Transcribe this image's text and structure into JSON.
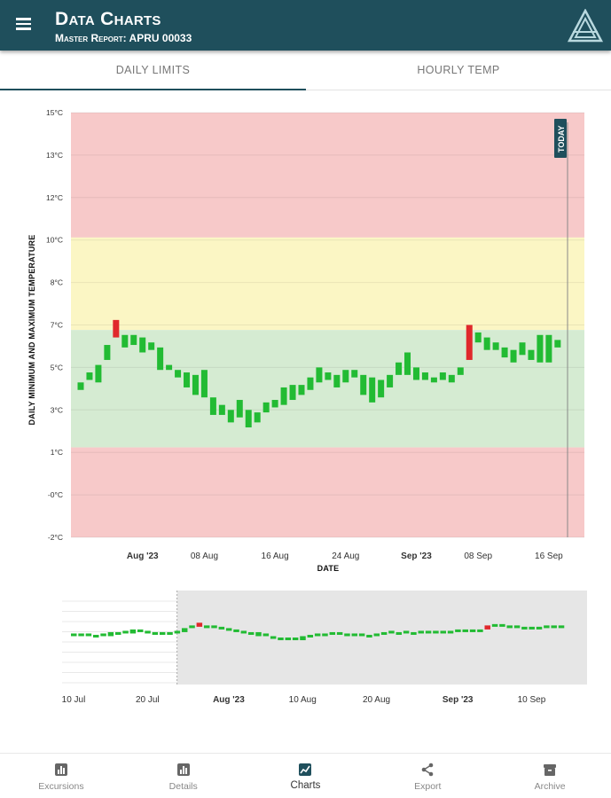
{
  "header": {
    "title": "Data Charts",
    "subtitle": "Master Report: APRU 00033",
    "background": "#1f4f5c",
    "menu_icon": "hamburger-menu-icon",
    "logo_icon": "triangle-logo-icon"
  },
  "tabs": [
    {
      "label": "DAILY LIMITS",
      "active": true
    },
    {
      "label": "HOURLY TEMP",
      "active": false
    }
  ],
  "bottom_nav": [
    {
      "label": "Excursions",
      "icon": "bar-chart-icon",
      "active": false
    },
    {
      "label": "Details",
      "icon": "bar-chart-icon",
      "active": false
    },
    {
      "label": "Charts",
      "icon": "line-chart-icon",
      "active": true
    },
    {
      "label": "Export",
      "icon": "share-icon",
      "active": false
    },
    {
      "label": "Archive",
      "icon": "archive-icon",
      "active": false
    }
  ],
  "chart_data": [
    {
      "type": "candlestick",
      "xlabel": "DATE",
      "ylabel": "DAILY MINIMUM AND MAXIMUM TEMPERATURE",
      "today_label": "TODAY",
      "y_ticks": [
        "15°C",
        "13°C",
        "12°C",
        "10°C",
        "8°C",
        "7°C",
        "5°C",
        "3°C",
        "1°C",
        "-0°C",
        "-2°C"
      ],
      "ylim": [
        -2,
        15
      ],
      "x_ticks": [
        {
          "label": "Aug '23",
          "day": 31,
          "bold": true
        },
        {
          "label": "08 Aug",
          "day": 38,
          "bold": false
        },
        {
          "label": "16 Aug",
          "day": 46,
          "bold": false
        },
        {
          "label": "24 Aug",
          "day": 54,
          "bold": false
        },
        {
          "label": "Sep '23",
          "day": 62,
          "bold": true
        },
        {
          "label": "08 Sep",
          "day": 69,
          "bold": false
        },
        {
          "label": "16 Sep",
          "day": 77,
          "bold": false
        }
      ],
      "zones": [
        {
          "from": 10,
          "to": 15,
          "color": "#f7c9c9"
        },
        {
          "from": 6.3,
          "to": 10,
          "color": "#fbf6c4"
        },
        {
          "from": 1.6,
          "to": 6.3,
          "color": "#d5ebd2"
        },
        {
          "from": -2,
          "to": 1.6,
          "color": "#f7c9c9"
        }
      ],
      "colors": {
        "ok": "#22bb33",
        "excursion": "#e0282c"
      },
      "series": [
        {
          "day": 24,
          "min": 3.9,
          "max": 4.2,
          "excursion": false
        },
        {
          "day": 25,
          "min": 4.3,
          "max": 4.6,
          "excursion": false
        },
        {
          "day": 26,
          "min": 4.2,
          "max": 4.9,
          "excursion": false
        },
        {
          "day": 27,
          "min": 5.1,
          "max": 5.7,
          "excursion": false
        },
        {
          "day": 28,
          "min": 6.0,
          "max": 6.7,
          "excursion": true
        },
        {
          "day": 29,
          "min": 5.6,
          "max": 6.1,
          "excursion": false
        },
        {
          "day": 30,
          "min": 5.7,
          "max": 6.1,
          "excursion": false
        },
        {
          "day": 31,
          "min": 5.4,
          "max": 6.0,
          "excursion": false
        },
        {
          "day": 32,
          "min": 5.5,
          "max": 5.8,
          "excursion": false
        },
        {
          "day": 33,
          "min": 4.7,
          "max": 5.6,
          "excursion": false
        },
        {
          "day": 34,
          "min": 4.7,
          "max": 4.9,
          "excursion": false
        },
        {
          "day": 35,
          "min": 4.4,
          "max": 4.7,
          "excursion": false
        },
        {
          "day": 36,
          "min": 4.0,
          "max": 4.6,
          "excursion": false
        },
        {
          "day": 37,
          "min": 3.7,
          "max": 4.5,
          "excursion": false
        },
        {
          "day": 38,
          "min": 3.6,
          "max": 4.7,
          "excursion": false
        },
        {
          "day": 39,
          "min": 2.9,
          "max": 3.6,
          "excursion": false
        },
        {
          "day": 40,
          "min": 2.9,
          "max": 3.3,
          "excursion": false
        },
        {
          "day": 41,
          "min": 2.6,
          "max": 3.1,
          "excursion": false
        },
        {
          "day": 42,
          "min": 2.8,
          "max": 3.5,
          "excursion": false
        },
        {
          "day": 43,
          "min": 2.4,
          "max": 3.1,
          "excursion": false
        },
        {
          "day": 44,
          "min": 2.6,
          "max": 3.0,
          "excursion": false
        },
        {
          "day": 45,
          "min": 3.0,
          "max": 3.4,
          "excursion": false
        },
        {
          "day": 46,
          "min": 3.2,
          "max": 3.5,
          "excursion": false
        },
        {
          "day": 47,
          "min": 3.3,
          "max": 4.0,
          "excursion": false
        },
        {
          "day": 48,
          "min": 3.5,
          "max": 4.1,
          "excursion": false
        },
        {
          "day": 49,
          "min": 3.7,
          "max": 4.1,
          "excursion": false
        },
        {
          "day": 50,
          "min": 3.9,
          "max": 4.4,
          "excursion": false
        },
        {
          "day": 51,
          "min": 4.2,
          "max": 4.8,
          "excursion": false
        },
        {
          "day": 52,
          "min": 4.3,
          "max": 4.6,
          "excursion": false
        },
        {
          "day": 53,
          "min": 4.0,
          "max": 4.5,
          "excursion": false
        },
        {
          "day": 54,
          "min": 4.2,
          "max": 4.7,
          "excursion": false
        },
        {
          "day": 55,
          "min": 4.4,
          "max": 4.7,
          "excursion": false
        },
        {
          "day": 56,
          "min": 3.7,
          "max": 4.5,
          "excursion": false
        },
        {
          "day": 57,
          "min": 3.4,
          "max": 4.4,
          "excursion": false
        },
        {
          "day": 58,
          "min": 3.6,
          "max": 4.3,
          "excursion": false
        },
        {
          "day": 59,
          "min": 4.0,
          "max": 4.5,
          "excursion": false
        },
        {
          "day": 60,
          "min": 4.5,
          "max": 5.0,
          "excursion": false
        },
        {
          "day": 61,
          "min": 4.5,
          "max": 5.4,
          "excursion": false
        },
        {
          "day": 62,
          "min": 4.3,
          "max": 4.8,
          "excursion": false
        },
        {
          "day": 63,
          "min": 4.3,
          "max": 4.6,
          "excursion": false
        },
        {
          "day": 64,
          "min": 4.2,
          "max": 4.4,
          "excursion": false
        },
        {
          "day": 65,
          "min": 4.3,
          "max": 4.6,
          "excursion": false
        },
        {
          "day": 66,
          "min": 4.2,
          "max": 4.5,
          "excursion": false
        },
        {
          "day": 67,
          "min": 4.5,
          "max": 4.8,
          "excursion": false
        },
        {
          "day": 68,
          "min": 5.1,
          "max": 6.5,
          "excursion": true
        },
        {
          "day": 69,
          "min": 5.8,
          "max": 6.2,
          "excursion": false
        },
        {
          "day": 70,
          "min": 5.5,
          "max": 6.0,
          "excursion": false
        },
        {
          "day": 71,
          "min": 5.5,
          "max": 5.8,
          "excursion": false
        },
        {
          "day": 72,
          "min": 5.2,
          "max": 5.6,
          "excursion": false
        },
        {
          "day": 73,
          "min": 5.0,
          "max": 5.5,
          "excursion": false
        },
        {
          "day": 74,
          "min": 5.3,
          "max": 5.8,
          "excursion": false
        },
        {
          "day": 75,
          "min": 5.1,
          "max": 5.5,
          "excursion": false
        },
        {
          "day": 76,
          "min": 5.0,
          "max": 6.1,
          "excursion": false
        },
        {
          "day": 77,
          "min": 5.0,
          "max": 6.1,
          "excursion": false
        },
        {
          "day": 78,
          "min": 5.6,
          "max": 5.9,
          "excursion": false
        }
      ]
    },
    {
      "type": "navigator",
      "x_ticks": [
        {
          "label": "10 Jul",
          "day": 10,
          "bold": false
        },
        {
          "label": "20 Jul",
          "day": 20,
          "bold": false
        },
        {
          "label": "Aug '23",
          "day": 31,
          "bold": true
        },
        {
          "label": "10 Aug",
          "day": 41,
          "bold": false
        },
        {
          "label": "20 Aug",
          "day": 51,
          "bold": false
        },
        {
          "label": "Sep '23",
          "day": 62,
          "bold": true
        },
        {
          "label": "10 Sep",
          "day": 72,
          "bold": false
        }
      ],
      "selected_range": [
        24,
        81
      ],
      "series": [
        {
          "day": 10,
          "min": 4.6,
          "max": 4.8,
          "excursion": false
        },
        {
          "day": 11,
          "min": 4.6,
          "max": 4.8,
          "excursion": false
        },
        {
          "day": 12,
          "min": 4.6,
          "max": 4.8,
          "excursion": false
        },
        {
          "day": 13,
          "min": 4.5,
          "max": 4.7,
          "excursion": false
        },
        {
          "day": 14,
          "min": 4.6,
          "max": 4.8,
          "excursion": false
        },
        {
          "day": 15,
          "min": 4.6,
          "max": 4.9,
          "excursion": false
        },
        {
          "day": 16,
          "min": 4.7,
          "max": 4.9,
          "excursion": false
        },
        {
          "day": 17,
          "min": 4.8,
          "max": 5.0,
          "excursion": false
        },
        {
          "day": 18,
          "min": 4.8,
          "max": 5.1,
          "excursion": false
        },
        {
          "day": 19,
          "min": 4.9,
          "max": 5.1,
          "excursion": false
        },
        {
          "day": 20,
          "min": 4.8,
          "max": 5.0,
          "excursion": false
        },
        {
          "day": 21,
          "min": 4.7,
          "max": 4.9,
          "excursion": false
        },
        {
          "day": 22,
          "min": 4.7,
          "max": 4.9,
          "excursion": false
        },
        {
          "day": 23,
          "min": 4.7,
          "max": 4.9,
          "excursion": false
        },
        {
          "day": 24,
          "min": 4.8,
          "max": 5.0,
          "excursion": false
        },
        {
          "day": 25,
          "min": 4.9,
          "max": 5.2,
          "excursion": false
        },
        {
          "day": 26,
          "min": 5.2,
          "max": 5.4,
          "excursion": false
        },
        {
          "day": 27,
          "min": 5.3,
          "max": 5.6,
          "excursion": true
        },
        {
          "day": 28,
          "min": 5.2,
          "max": 5.4,
          "excursion": false
        },
        {
          "day": 29,
          "min": 5.2,
          "max": 5.4,
          "excursion": false
        },
        {
          "day": 30,
          "min": 5.1,
          "max": 5.3,
          "excursion": false
        },
        {
          "day": 31,
          "min": 5.0,
          "max": 5.2,
          "excursion": false
        },
        {
          "day": 32,
          "min": 4.9,
          "max": 5.1,
          "excursion": false
        },
        {
          "day": 33,
          "min": 4.8,
          "max": 5.0,
          "excursion": false
        },
        {
          "day": 34,
          "min": 4.7,
          "max": 4.9,
          "excursion": false
        },
        {
          "day": 35,
          "min": 4.6,
          "max": 4.9,
          "excursion": false
        },
        {
          "day": 36,
          "min": 4.6,
          "max": 4.8,
          "excursion": false
        },
        {
          "day": 37,
          "min": 4.4,
          "max": 4.6,
          "excursion": false
        },
        {
          "day": 38,
          "min": 4.3,
          "max": 4.5,
          "excursion": false
        },
        {
          "day": 39,
          "min": 4.3,
          "max": 4.5,
          "excursion": false
        },
        {
          "day": 40,
          "min": 4.3,
          "max": 4.5,
          "excursion": false
        },
        {
          "day": 41,
          "min": 4.3,
          "max": 4.6,
          "excursion": false
        },
        {
          "day": 42,
          "min": 4.5,
          "max": 4.7,
          "excursion": false
        },
        {
          "day": 43,
          "min": 4.6,
          "max": 4.8,
          "excursion": false
        },
        {
          "day": 44,
          "min": 4.6,
          "max": 4.8,
          "excursion": false
        },
        {
          "day": 45,
          "min": 4.7,
          "max": 4.9,
          "excursion": false
        },
        {
          "day": 46,
          "min": 4.7,
          "max": 4.9,
          "excursion": false
        },
        {
          "day": 47,
          "min": 4.6,
          "max": 4.8,
          "excursion": false
        },
        {
          "day": 48,
          "min": 4.6,
          "max": 4.8,
          "excursion": false
        },
        {
          "day": 49,
          "min": 4.6,
          "max": 4.8,
          "excursion": false
        },
        {
          "day": 50,
          "min": 4.5,
          "max": 4.7,
          "excursion": false
        },
        {
          "day": 51,
          "min": 4.6,
          "max": 4.8,
          "excursion": false
        },
        {
          "day": 52,
          "min": 4.7,
          "max": 4.9,
          "excursion": false
        },
        {
          "day": 53,
          "min": 4.8,
          "max": 5.0,
          "excursion": false
        },
        {
          "day": 54,
          "min": 4.7,
          "max": 4.9,
          "excursion": false
        },
        {
          "day": 55,
          "min": 4.8,
          "max": 5.0,
          "excursion": false
        },
        {
          "day": 56,
          "min": 4.7,
          "max": 4.9,
          "excursion": false
        },
        {
          "day": 57,
          "min": 4.8,
          "max": 5.0,
          "excursion": false
        },
        {
          "day": 58,
          "min": 4.8,
          "max": 5.0,
          "excursion": false
        },
        {
          "day": 59,
          "min": 4.8,
          "max": 5.0,
          "excursion": false
        },
        {
          "day": 60,
          "min": 4.8,
          "max": 5.0,
          "excursion": false
        },
        {
          "day": 61,
          "min": 4.8,
          "max": 5.0,
          "excursion": false
        },
        {
          "day": 62,
          "min": 4.9,
          "max": 5.1,
          "excursion": false
        },
        {
          "day": 63,
          "min": 4.9,
          "max": 5.1,
          "excursion": false
        },
        {
          "day": 64,
          "min": 4.9,
          "max": 5.1,
          "excursion": false
        },
        {
          "day": 65,
          "min": 4.9,
          "max": 5.1,
          "excursion": false
        },
        {
          "day": 66,
          "min": 5.1,
          "max": 5.4,
          "excursion": true
        },
        {
          "day": 67,
          "min": 5.3,
          "max": 5.5,
          "excursion": false
        },
        {
          "day": 68,
          "min": 5.3,
          "max": 5.5,
          "excursion": false
        },
        {
          "day": 69,
          "min": 5.2,
          "max": 5.4,
          "excursion": false
        },
        {
          "day": 70,
          "min": 5.2,
          "max": 5.4,
          "excursion": false
        },
        {
          "day": 71,
          "min": 5.1,
          "max": 5.3,
          "excursion": false
        },
        {
          "day": 72,
          "min": 5.1,
          "max": 5.3,
          "excursion": false
        },
        {
          "day": 73,
          "min": 5.1,
          "max": 5.3,
          "excursion": false
        },
        {
          "day": 74,
          "min": 5.2,
          "max": 5.4,
          "excursion": false
        },
        {
          "day": 75,
          "min": 5.2,
          "max": 5.4,
          "excursion": false
        },
        {
          "day": 76,
          "min": 5.2,
          "max": 5.4,
          "excursion": false
        }
      ]
    }
  ]
}
